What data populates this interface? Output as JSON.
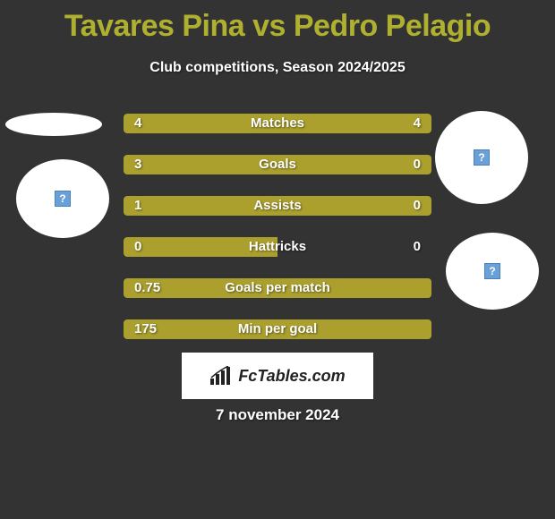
{
  "header": {
    "title": "Tavares Pina vs Pedro Pelagio",
    "subtitle": "Club competitions, Season 2024/2025",
    "title_color": "#b0b030"
  },
  "circles": {
    "placeholder_glyph": "?",
    "placeholder_bg": "#6aa0d8"
  },
  "stats": {
    "bar_color": "#aba02e",
    "full_width": 344,
    "rows": [
      {
        "label": "Matches",
        "left": "4",
        "right": "4",
        "left_pct": 50,
        "right_pct": 50,
        "left_filled": true,
        "right_filled": true
      },
      {
        "label": "Goals",
        "left": "3",
        "right": "0",
        "left_pct": 77,
        "right_pct": 23,
        "left_filled": true,
        "right_filled": true
      },
      {
        "label": "Assists",
        "left": "1",
        "right": "0",
        "left_pct": 77,
        "right_pct": 23,
        "left_filled": true,
        "right_filled": true
      },
      {
        "label": "Hattricks",
        "left": "0",
        "right": "0",
        "left_pct": 50,
        "right_pct": 0,
        "left_filled": true,
        "right_filled": false
      },
      {
        "label": "Goals per match",
        "left": "0.75",
        "right": "",
        "left_pct": 100,
        "right_pct": 0,
        "left_filled": true,
        "right_filled": false
      },
      {
        "label": "Min per goal",
        "left": "175",
        "right": "",
        "left_pct": 100,
        "right_pct": 0,
        "left_filled": true,
        "right_filled": false
      }
    ]
  },
  "logo": {
    "text": "FcTables.com"
  },
  "footer": {
    "date": "7 november 2024"
  }
}
